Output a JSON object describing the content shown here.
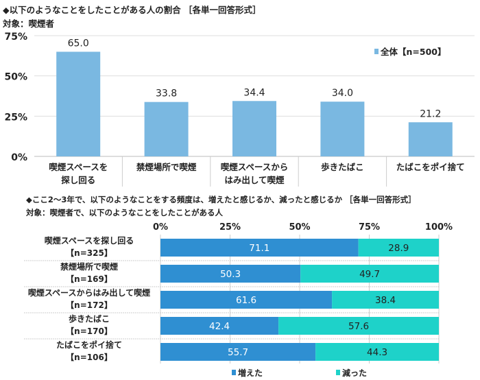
{
  "chart_data": [
    {
      "type": "bar",
      "title": "◆以下のようなことをしたことがある人の割合 ［各単一回答形式］",
      "subtitle": "対象：喫煙者",
      "categories": [
        [
          "喫煙スペースを",
          "探し回る"
        ],
        [
          "禁煙場所で喫煙"
        ],
        [
          "喫煙スペースから",
          "はみ出して喫煙"
        ],
        [
          "歩きたばこ"
        ],
        [
          "たばこをポイ捨て"
        ]
      ],
      "series": [
        {
          "name": "全体【n=500】",
          "values": [
            65.0,
            33.8,
            34.4,
            34.0,
            21.2
          ],
          "color": "#7ab8e1"
        }
      ],
      "data_labels": [
        "65.0",
        "33.8",
        "34.4",
        "34.0",
        "21.2"
      ],
      "ylim": [
        0,
        75
      ],
      "yticks": [
        "0%",
        "25%",
        "50%",
        "75%"
      ],
      "grid": true,
      "legend": "top-right"
    },
    {
      "type": "bar",
      "orientation": "horizontal-stacked-100",
      "title": "◆ここ2～3年で、以下のようなことをする頻度は、増えたと感じるか、減ったと感じるか ［各単一回答形式］",
      "subtitle": "対象：喫煙者で、以下のようなことをしたことがある人",
      "categories": [
        [
          "喫煙スペースを探し回る",
          "【n=325】"
        ],
        [
          "禁煙場所で喫煙",
          "【n=169】"
        ],
        [
          "喫煙スペースからはみ出して喫煙",
          "【n=172】"
        ],
        [
          "歩きたばこ",
          "【n=170】"
        ],
        [
          "たばこをポイ捨て",
          "【n=106】"
        ]
      ],
      "series": [
        {
          "name": "増えた",
          "values": [
            71.1,
            50.3,
            61.6,
            42.4,
            55.7
          ],
          "labels": [
            "71.1",
            "50.3",
            "61.6",
            "42.4",
            "55.7"
          ],
          "color": "#2f8fd2"
        },
        {
          "name": "減った",
          "values": [
            28.9,
            49.7,
            38.4,
            57.6,
            44.3
          ],
          "labels": [
            "28.9",
            "49.7",
            "38.4",
            "57.6",
            "44.3"
          ],
          "color": "#1ed2c9"
        }
      ],
      "xlim": [
        0,
        100
      ],
      "xticks": [
        "0%",
        "25%",
        "50%",
        "75%",
        "100%"
      ],
      "legend": "bottom"
    }
  ]
}
